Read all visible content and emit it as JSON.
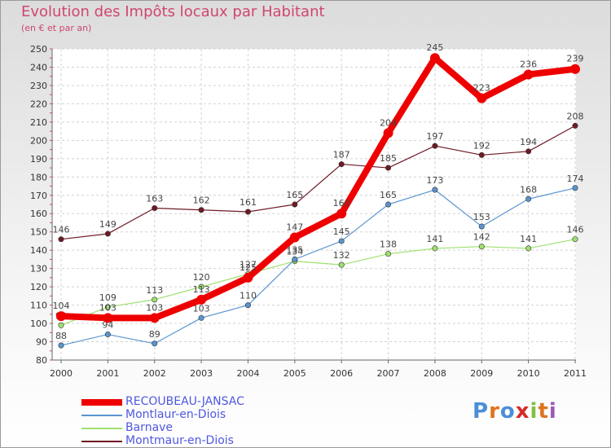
{
  "chart_data": {
    "type": "line",
    "title": "Evolution des Impôts locaux par Habitant",
    "subtitle": "(en € et par an)",
    "xlabel": "",
    "ylabel": "",
    "categories": [
      "2000",
      "2001",
      "2002",
      "2003",
      "2004",
      "2005",
      "2006",
      "2007",
      "2008",
      "2009",
      "2010",
      "2011"
    ],
    "ylim": [
      80,
      250
    ],
    "yticks": [
      80,
      90,
      100,
      110,
      120,
      130,
      140,
      150,
      160,
      170,
      180,
      190,
      200,
      210,
      220,
      230,
      240,
      250
    ],
    "grid": true,
    "legend_position": "bottom-left",
    "series": [
      {
        "name": "Montmaur-en-Diois",
        "color": "#6e1a24",
        "values": [
          146,
          149,
          163,
          162,
          161,
          165,
          187,
          185,
          197,
          192,
          194,
          208
        ]
      },
      {
        "name": "Barnave",
        "color": "#9fe070",
        "values": [
          99,
          109,
          113,
          120,
          127,
          134,
          132,
          138,
          141,
          142,
          141,
          146
        ]
      },
      {
        "name": "Montlaur-en-Diois",
        "color": "#5a95cf",
        "values": [
          88,
          94,
          89,
          103,
          110,
          135,
          145,
          165,
          173,
          153,
          168,
          174
        ]
      },
      {
        "name": "RECOUBEAU-JANSAC",
        "color": "#ee0000",
        "values": [
          104,
          103,
          103,
          113,
          125,
          147,
          160,
          204,
          245,
          223,
          236,
          239
        ]
      }
    ],
    "legend_order": [
      "RECOUBEAU-JANSAC",
      "Montlaur-en-Diois",
      "Barnave",
      "Montmaur-en-Diois"
    ]
  },
  "logo_text": "Proxiti"
}
